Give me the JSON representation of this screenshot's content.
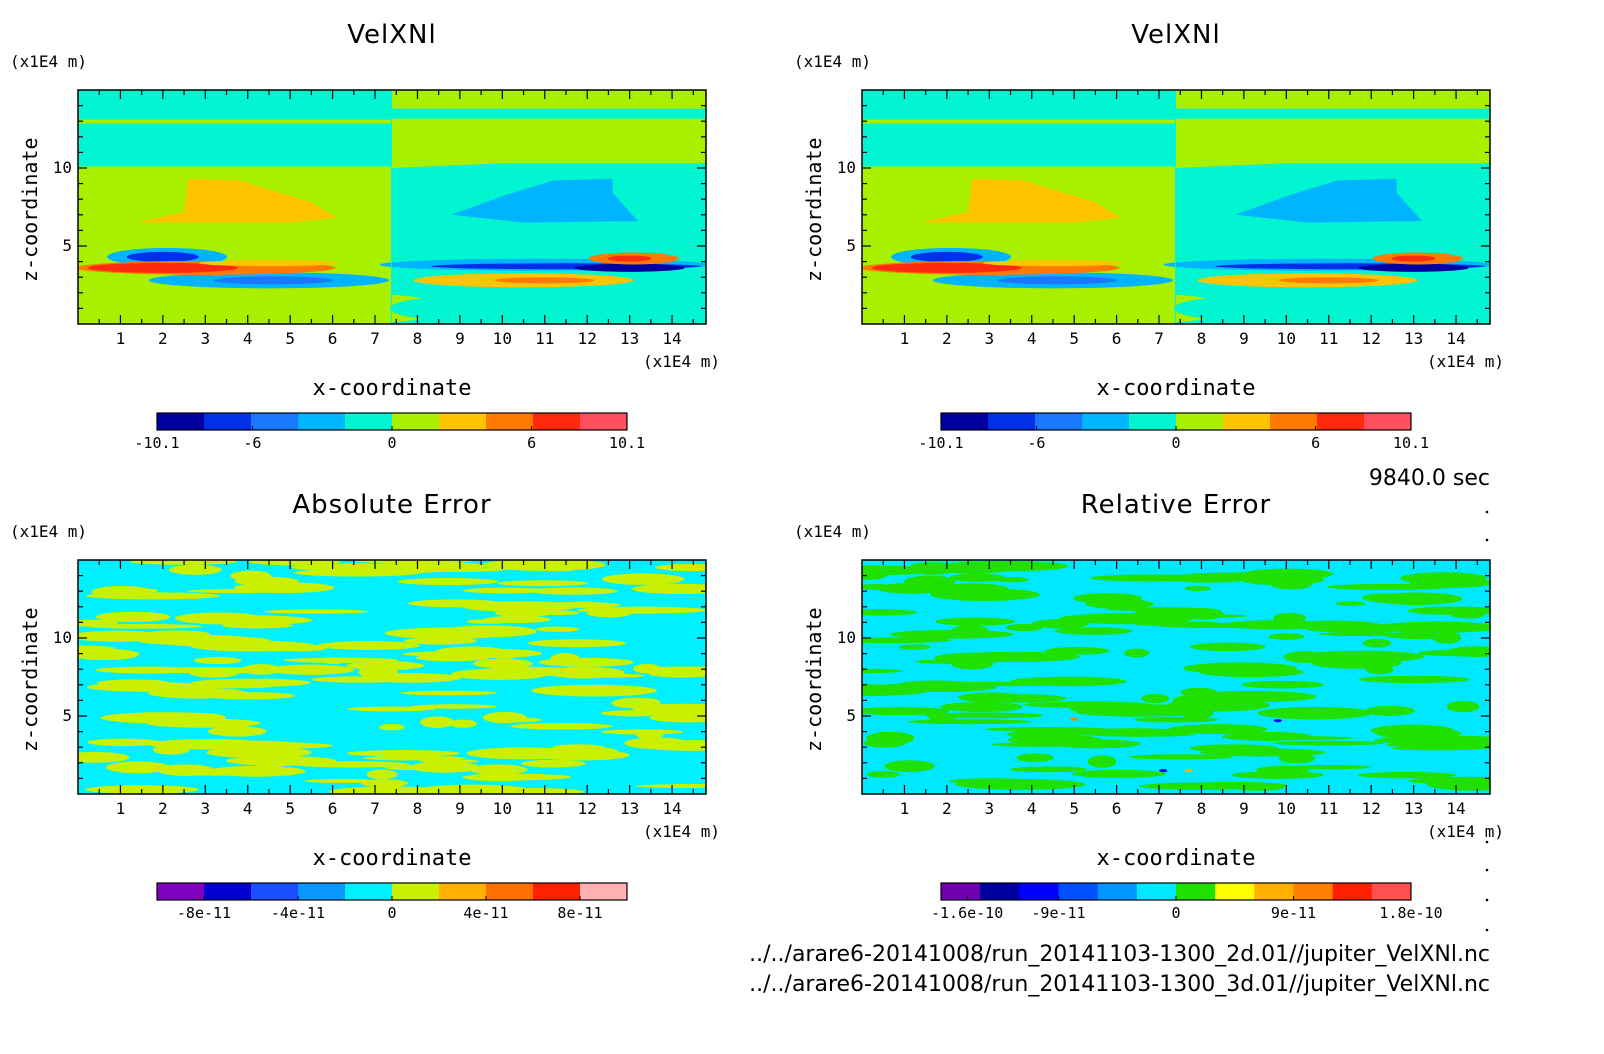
{
  "time_label": "9840.0 sec",
  "files": [
    "../../arare6-20141008/run_20141103-1300_2d.01//jupiter_VelXNl.nc",
    "../../arare6-20141008/run_20141103-1300_3d.01//jupiter_VelXNl.nc"
  ],
  "colors": {
    "velocity": [
      "#0000a0",
      "#0030e8",
      "#1a78ff",
      "#00b4ff",
      "#00f5d0",
      "#a8f000",
      "#ffc400",
      "#ff7a00",
      "#ff2a10",
      "#ff5060"
    ],
    "abs_error": [
      "#8000c0",
      "#0000d0",
      "#1a50ff",
      "#0a96ff",
      "#00f0ff",
      "#c8f000",
      "#ffb000",
      "#ff7000",
      "#ff2000",
      "#ffb0b0"
    ],
    "rel_error": [
      "#7000b0",
      "#0000a0",
      "#0000ff",
      "#0050ff",
      "#0096ff",
      "#00e8ff",
      "#20e000",
      "#ffff00",
      "#ffb000",
      "#ff8000",
      "#ff2000",
      "#ff5050"
    ]
  },
  "chart_data": [
    {
      "id": "velxnl-2d",
      "type": "heatmap",
      "title": "VelXNl",
      "xlabel": "x-coordinate",
      "ylabel": "z-coordinate",
      "x_unit": "(x1E4 m)",
      "y_unit": "(x1E4 m)",
      "xlim": [
        0,
        14.8
      ],
      "ylim": [
        0,
        15
      ],
      "x_ticks": [
        1,
        2,
        3,
        4,
        5,
        6,
        7,
        8,
        9,
        10,
        11,
        12,
        13,
        14
      ],
      "y_ticks": [
        5,
        10
      ],
      "colorbar": {
        "range": [
          -10.1,
          10.1
        ],
        "labels": [
          "-10.1",
          "-6",
          "0",
          "6",
          "10.1"
        ],
        "label_values": [
          -10.1,
          -6,
          0,
          6,
          10.1
        ]
      }
    },
    {
      "id": "velxnl-3d",
      "type": "heatmap",
      "title": "VelXNl",
      "xlabel": "x-coordinate",
      "ylabel": "z-coordinate",
      "x_unit": "(x1E4 m)",
      "y_unit": "(x1E4 m)",
      "xlim": [
        0,
        14.8
      ],
      "ylim": [
        0,
        15
      ],
      "x_ticks": [
        1,
        2,
        3,
        4,
        5,
        6,
        7,
        8,
        9,
        10,
        11,
        12,
        13,
        14
      ],
      "y_ticks": [
        5,
        10
      ],
      "colorbar": {
        "range": [
          -10.1,
          10.1
        ],
        "labels": [
          "-10.1",
          "-6",
          "0",
          "6",
          "10.1"
        ],
        "label_values": [
          -10.1,
          -6,
          0,
          6,
          10.1
        ]
      }
    },
    {
      "id": "absolute-error",
      "type": "heatmap",
      "title": "Absolute Error",
      "xlabel": "x-coordinate",
      "ylabel": "z-coordinate",
      "x_unit": "(x1E4 m)",
      "y_unit": "(x1E4 m)",
      "xlim": [
        0,
        14.8
      ],
      "ylim": [
        0,
        15
      ],
      "x_ticks": [
        1,
        2,
        3,
        4,
        5,
        6,
        7,
        8,
        9,
        10,
        11,
        12,
        13,
        14
      ],
      "y_ticks": [
        5,
        10
      ],
      "colorbar": {
        "range": [
          -1e-10,
          1e-10
        ],
        "labels": [
          "-8e-11",
          "-4e-11",
          "0",
          "4e-11",
          "8e-11"
        ],
        "label_values": [
          -8e-11,
          -4e-11,
          0,
          4e-11,
          8e-11
        ]
      }
    },
    {
      "id": "relative-error",
      "type": "heatmap",
      "title": "Relative Error",
      "xlabel": "x-coordinate",
      "ylabel": "z-coordinate",
      "x_unit": "(x1E4 m)",
      "y_unit": "(x1E4 m)",
      "xlim": [
        0,
        14.8
      ],
      "ylim": [
        0,
        15
      ],
      "x_ticks": [
        1,
        2,
        3,
        4,
        5,
        6,
        7,
        8,
        9,
        10,
        11,
        12,
        13,
        14
      ],
      "y_ticks": [
        5,
        10
      ],
      "colorbar": {
        "range": [
          -1.8e-10,
          1.8e-10
        ],
        "labels": [
          "-1.6e-10",
          "-9e-11",
          "0",
          "9e-11",
          "1.8e-10"
        ],
        "label_values": [
          -1.6e-10,
          -9e-11,
          0,
          9e-11,
          1.8e-10
        ]
      }
    }
  ]
}
